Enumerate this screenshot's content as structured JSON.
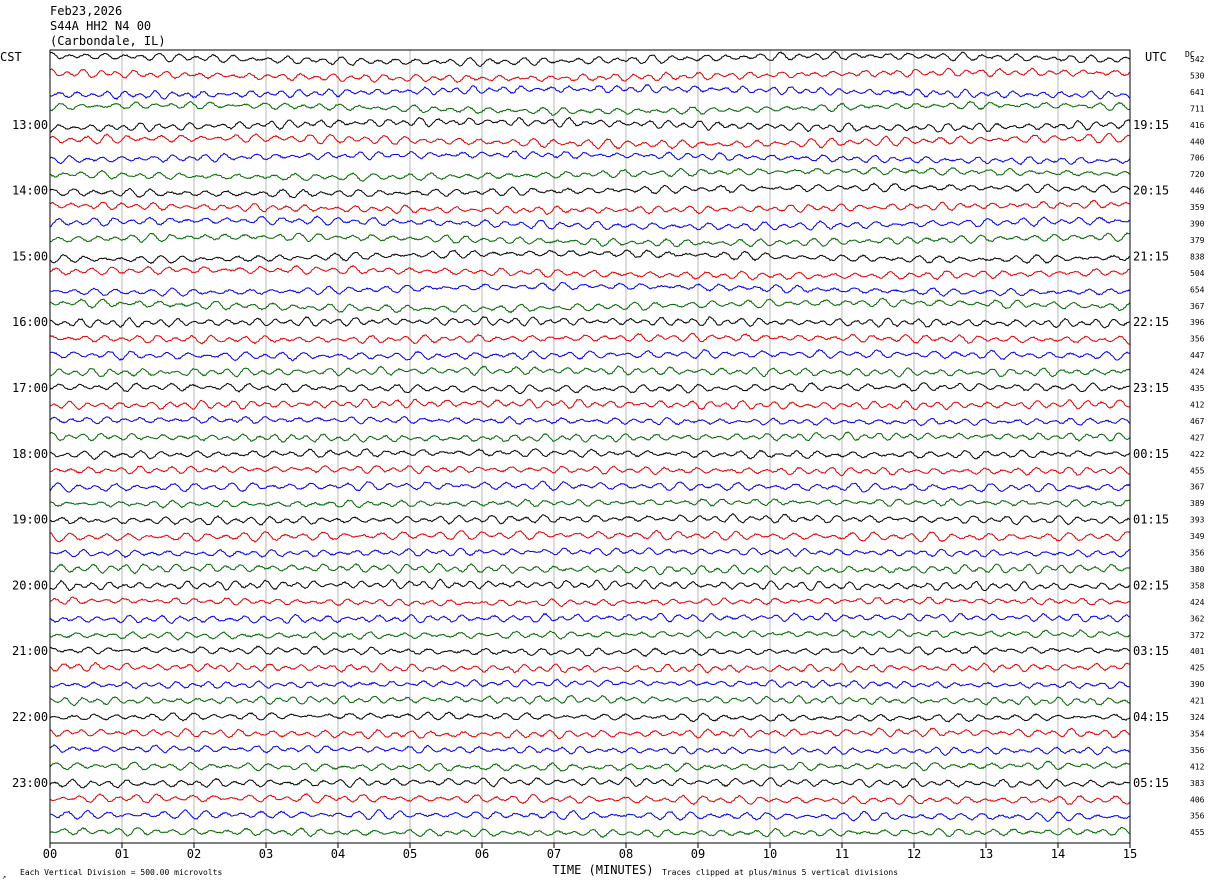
{
  "header": {
    "date": "Feb23,2026",
    "station": "S44A HH2 N4 00",
    "location": "(Carbondale, IL)"
  },
  "labels": {
    "left_tz": "CST",
    "right_tz": "UTC",
    "dc": "DC",
    "xlabel": "TIME (MINUTES)",
    "scale_note": "Each Vertical Division =  500.00 microvolts",
    "clip_note": "Traces clipped at plus/minus 5 vertical divisions"
  },
  "chart_data": {
    "type": "line",
    "xlabel": "TIME (MINUTES)",
    "xlim": [
      0,
      15
    ],
    "x_ticks": [
      "00",
      "01",
      "02",
      "03",
      "04",
      "05",
      "06",
      "07",
      "08",
      "09",
      "10",
      "11",
      "12",
      "13",
      "14",
      "15"
    ],
    "trace_colors": [
      "#000000",
      "#dd0000",
      "#0000dd",
      "#006600"
    ],
    "left_hour_labels": [
      "13:00",
      "14:00",
      "15:00",
      "16:00",
      "17:00",
      "18:00",
      "19:00",
      "20:00",
      "21:00",
      "22:00",
      "23:00"
    ],
    "right_hour_labels": [
      "19:15",
      "20:15",
      "21:15",
      "22:15",
      "23:15",
      "00:15",
      "01:15",
      "02:15",
      "03:15",
      "04:15",
      "05:15"
    ],
    "dc_offsets": [
      542,
      530,
      641,
      711,
      416,
      440,
      706,
      720,
      446,
      359,
      390,
      379,
      838,
      504,
      654,
      367,
      396,
      356,
      447,
      424,
      435,
      412,
      467,
      427,
      422,
      455,
      367,
      389,
      393,
      349,
      356,
      380,
      358,
      424,
      362,
      372,
      401,
      425,
      390,
      421,
      324,
      354,
      356,
      412,
      383,
      406,
      356,
      455
    ],
    "scale_microvolts_per_division": 500.0,
    "clip_divisions": 5
  }
}
